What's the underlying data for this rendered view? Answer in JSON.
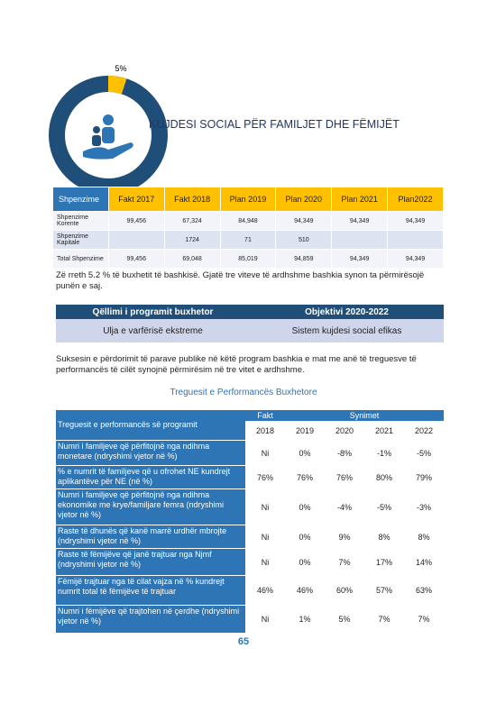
{
  "donut": {
    "value": 5,
    "value_label": "5%"
  },
  "title": "KUJDESI SOCIAL PËR FAMILJET DHE FËMIJËT",
  "budget_table": {
    "header": [
      "Shpenzime",
      "Fakt 2017",
      "Fakt 2018",
      "Plan 2019",
      "Plan 2020",
      "Plan 2021",
      "Plan2022"
    ],
    "rows": [
      [
        "Shpenzime Korente",
        "99,456",
        "67,324",
        "84,948",
        "94,349",
        "94,349",
        "94,349"
      ],
      [
        "Shpenzime Kapitale",
        null,
        "1724",
        "71",
        "510",
        null,
        null
      ],
      [
        "Total Shpenzime",
        "99,456",
        "69,048",
        "85,019",
        "94,859",
        "94,349",
        "94,349"
      ]
    ]
  },
  "paragraph1": "Zë rreth 5.2 % të buxhetit të bashkisë. Gjatë tre viteve të ardhshme bashkia synon ta përmirësojë punën e saj.",
  "goal_table": {
    "header": [
      "Qëllimi i programit buxhetor",
      "Objektivi 2020-2022"
    ],
    "row": [
      "Ulja e varfërisë ekstreme",
      "Sistem kujdesi social efikas"
    ]
  },
  "paragraph2": "Suksesin e përdorimit të parave publike në këtë program bashkia e mat me anë të treguesve të performancës të cilët synojnë përmirësim në tre vitet e ardhshme.",
  "perf_title": "Treguesit e Performancës Buxhetore",
  "perf_table": {
    "header": [
      "Treguesit e performancës së programit",
      "Fakt",
      "Synimet"
    ],
    "years": [
      "2018",
      "2019",
      "2020",
      "2021",
      "2022"
    ],
    "rows": [
      {
        "label": "Numri i familjeve që përfitojnë nga ndihma monetare (ndryshimi vjetor në %)",
        "values": [
          "Ni",
          "0%",
          "-8%",
          "-1%",
          "-5%"
        ]
      },
      {
        "label": "% e numrit të familjeve që u ofrohet NE kundrejt aplikantëve për NE (në %)",
        "values": [
          "76%",
          "76%",
          "76%",
          "80%",
          "79%"
        ]
      },
      {
        "label": "Numri i familjeve që përfitojnë nga ndihma ekonomike me krye/familjare femra (ndryshimi vjetor në %)",
        "values": [
          "Ni",
          "0%",
          "-4%",
          "-5%",
          "-3%"
        ]
      },
      {
        "label": "Raste të dhunës që kanë marrë urdhër mbrojte (ndryshimi vjetor në %)",
        "values": [
          "Ni",
          "0%",
          "9%",
          "8%",
          "8%"
        ]
      },
      {
        "label": "Raste të fëmijëve që janë trajtuar nga Njmf (ndryshimi vjetor në %)",
        "values": [
          "Ni",
          "0%",
          "7%",
          "17%",
          "14%"
        ]
      },
      {
        "label": "Fëmijë trajtuar nga të cilat vajza në % kundrejt numrit total të fëmijëve të trajtuar",
        "values": [
          "46%",
          "46%",
          "60%",
          "57%",
          "63%"
        ]
      },
      {
        "label": "Numri i fëmijëve që trajtohen në çerdhe (ndryshimi vjetor në %)",
        "values": [
          "Ni",
          "1%",
          "5%",
          "7%",
          "7%"
        ]
      }
    ]
  },
  "page_number": "65"
}
